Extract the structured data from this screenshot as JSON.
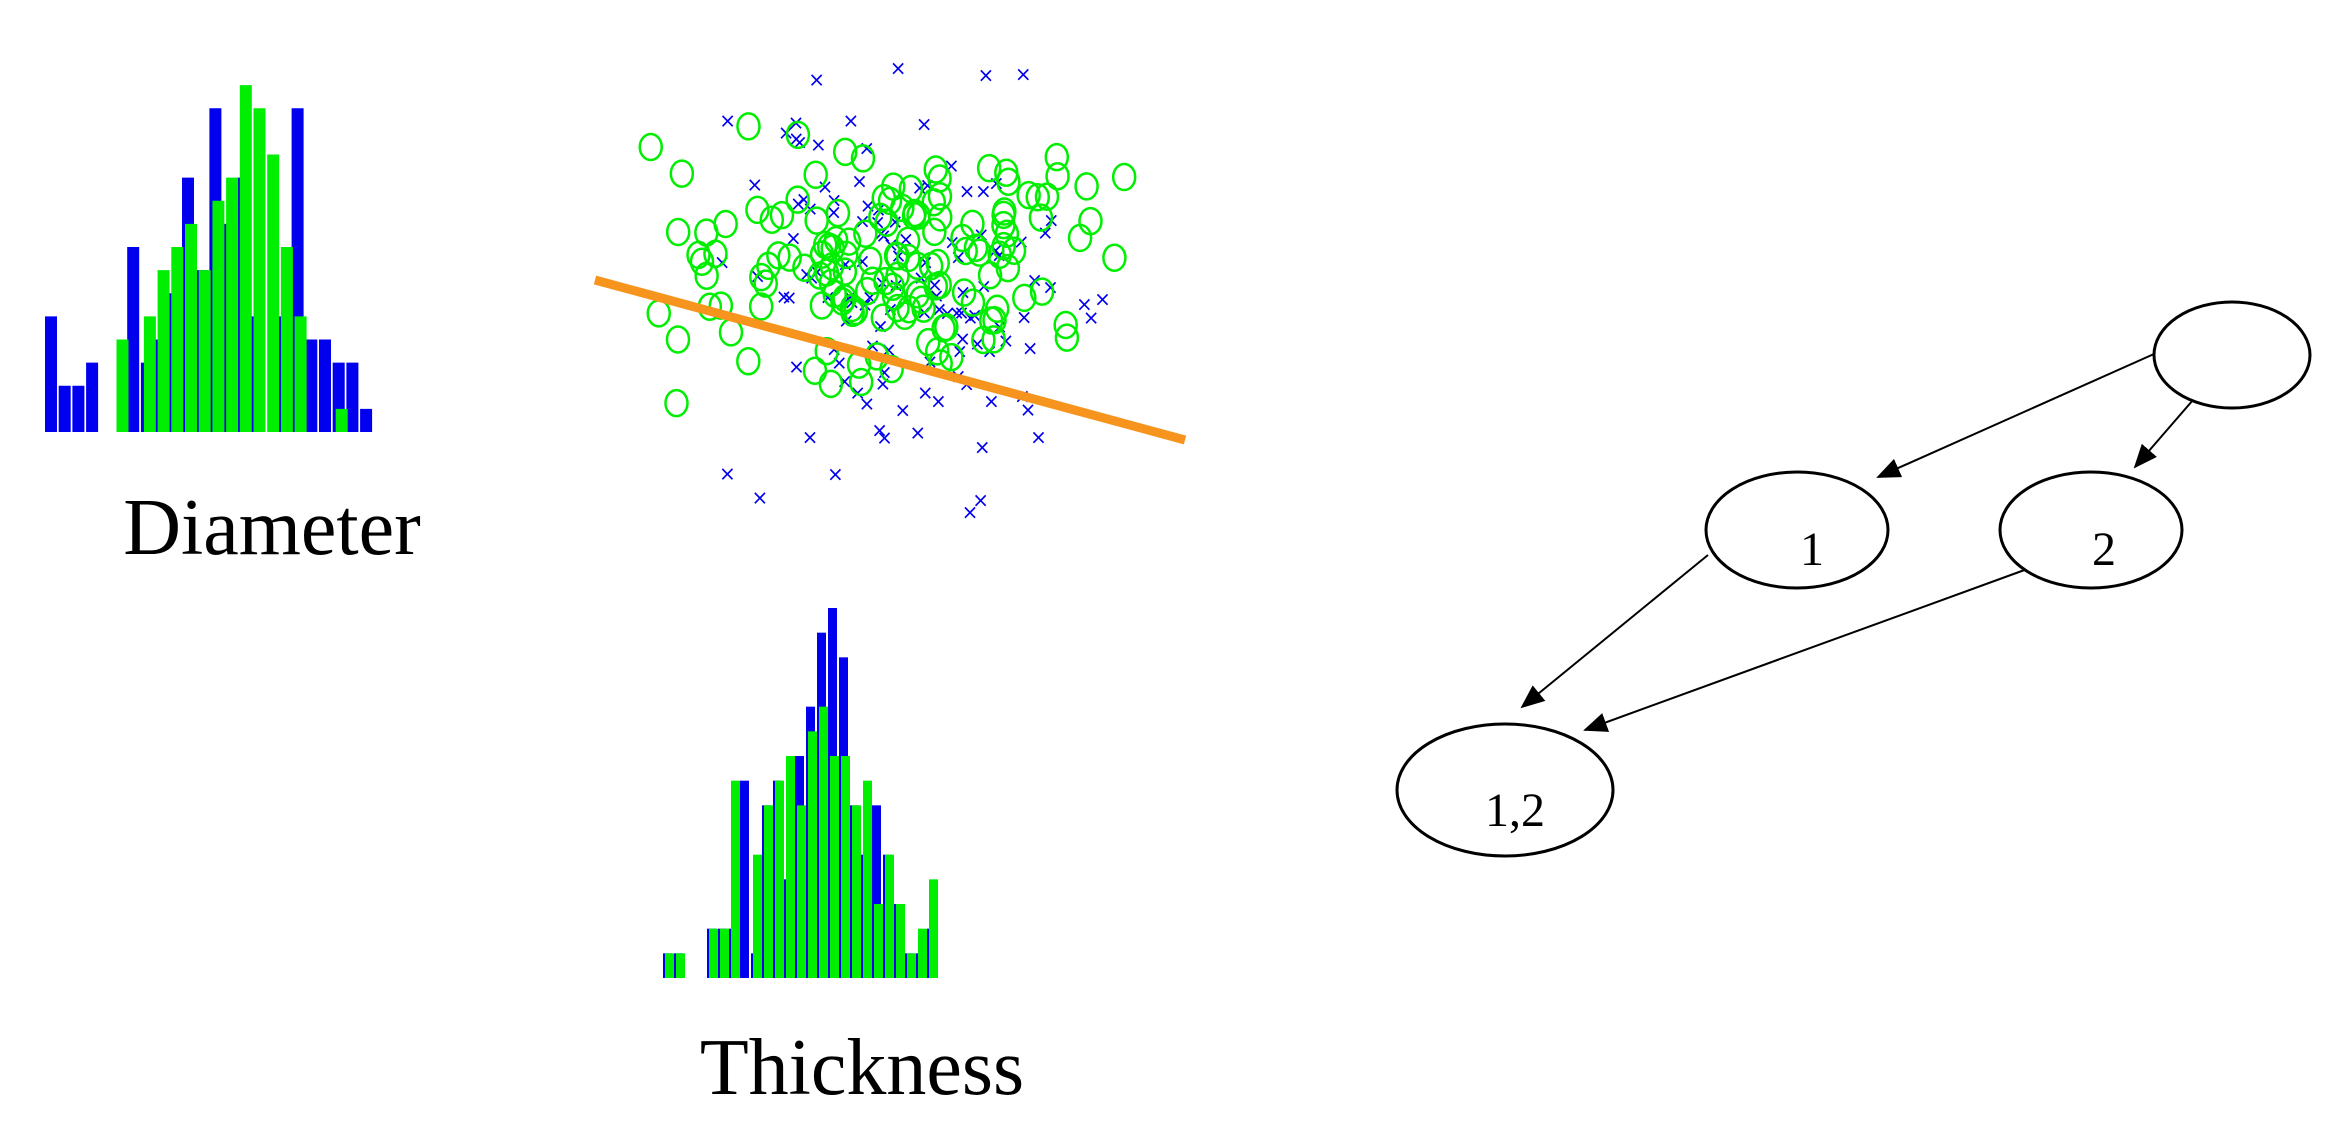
{
  "colors": {
    "blue": "#0000EE",
    "green": "#00EE00",
    "orange": "#F7941D",
    "black": "#000000"
  },
  "labels": {
    "diameter": "Diameter",
    "thickness": "Thickness"
  },
  "graph": {
    "nodes": {
      "root": "",
      "one": "1",
      "two": "2",
      "both": "1,2"
    }
  },
  "chart_data": [
    {
      "type": "bar",
      "xlabel": "Diameter",
      "series": [
        {
          "values": [
            5,
            2,
            2,
            3,
            0,
            0,
            8,
            3,
            4,
            6,
            11,
            7,
            14,
            9,
            11,
            5,
            0,
            5,
            14,
            4,
            4,
            3,
            3,
            1
          ]
        },
        {
          "values": [
            0,
            0,
            0,
            0,
            0,
            4,
            0,
            5,
            7,
            8,
            9,
            7,
            10,
            11,
            15,
            14,
            12,
            8,
            5,
            0,
            0,
            1,
            0,
            0
          ]
        }
      ]
    },
    {
      "type": "scatter",
      "series": [
        {
          "marker": "x",
          "points": []
        },
        {
          "marker": "o",
          "points": []
        }
      ],
      "regression_line": true
    },
    {
      "type": "bar",
      "xlabel": "Thickness",
      "series": [
        {
          "values": [
            1,
            1,
            0,
            0,
            2,
            2,
            2,
            8,
            1,
            7,
            8,
            4,
            9,
            11,
            14,
            15,
            13,
            7,
            5,
            7,
            5,
            3,
            1,
            1,
            2
          ]
        },
        {
          "values": [
            1,
            1,
            0,
            0,
            2,
            2,
            8,
            0,
            5,
            7,
            8,
            9,
            7,
            10,
            11,
            9,
            9,
            7,
            8,
            3,
            5,
            3,
            1,
            2,
            4
          ]
        }
      ]
    }
  ]
}
